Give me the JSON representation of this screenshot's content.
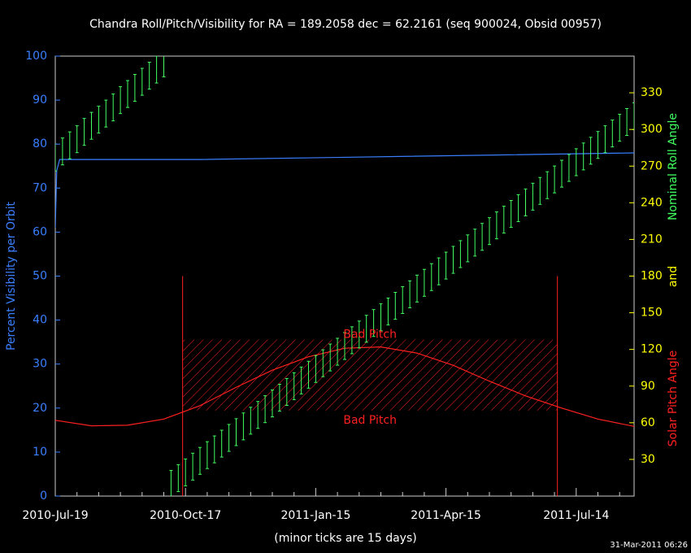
{
  "chart_data": {
    "type": "line",
    "title": "Chandra Roll/Pitch/Visibility for RA = 189.2058 dec = 62.2161 (seq 900024, Obsid 00957)",
    "ylabel": "Percent Visibility per Orbit",
    "y2label_parts": [
      {
        "text": "Solar Pitch Angle",
        "color": "#ff2020"
      },
      {
        "text": "and",
        "color": "#ffff00"
      },
      {
        "text": "Nominal Roll Angle",
        "color": "#40ff60"
      }
    ],
    "xlabel": "(minor ticks are 15 days)",
    "timestamp": "31-Mar-2011 06:26",
    "xlim": [
      0,
      400
    ],
    "xticks": [
      {
        "value": 0,
        "label": "2010-Jul-19"
      },
      {
        "value": 90,
        "label": "2010-Oct-17"
      },
      {
        "value": 180,
        "label": "2011-Jan-15"
      },
      {
        "value": 270,
        "label": "2011-Apr-15"
      },
      {
        "value": 360,
        "label": "2011-Jul-14"
      }
    ],
    "xminorticks": [
      15,
      30,
      45,
      60,
      75,
      105,
      120,
      135,
      150,
      165,
      195,
      210,
      225,
      240,
      255,
      285,
      300,
      315,
      330,
      345,
      375,
      390
    ],
    "ylim": [
      0,
      100
    ],
    "yticks": [
      0,
      10,
      20,
      30,
      40,
      50,
      60,
      70,
      80,
      90,
      100
    ],
    "ycolor": "#3a7fff",
    "y2lim": [
      0,
      360
    ],
    "y2ticks": [
      30,
      60,
      90,
      120,
      150,
      180,
      210,
      240,
      270,
      300,
      330
    ],
    "y2color": "#ffff00",
    "bad_pitch": {
      "labels": [
        "Bad Pitch",
        "Bad Pitch"
      ],
      "x": [
        88,
        347
      ],
      "range": [
        70,
        128
      ],
      "line_top": 180,
      "color": "#ff2020"
    },
    "series": [
      {
        "name": "Visibility",
        "color": "#3a7fff",
        "style": "line",
        "x": [
          0,
          1,
          3,
          100,
          200,
          300,
          400
        ],
        "values": [
          61,
          74,
          76.5,
          76.5,
          77,
          77.5,
          78
        ]
      },
      {
        "name": "Pitch",
        "color": "#ff2020",
        "style": "line",
        "axis": "y2",
        "x": [
          0,
          25,
          50,
          75,
          100,
          125,
          150,
          175,
          200,
          225,
          250,
          275,
          300,
          325,
          350,
          375,
          400
        ],
        "values": [
          62,
          57.5,
          58,
          63,
          74,
          89,
          103,
          114,
          121,
          122,
          117,
          107,
          94,
          82,
          72,
          63,
          57
        ]
      },
      {
        "name": "Roll",
        "color": "#40ff60",
        "style": "errorbar",
        "axis": "y2",
        "error": 11,
        "x": [
          0,
          5,
          10,
          15,
          20,
          25,
          30,
          35,
          40,
          45,
          50,
          55,
          60,
          65,
          70,
          75,
          80,
          85,
          90,
          95,
          100,
          105,
          110,
          115,
          120,
          125,
          130,
          135,
          140,
          145,
          150,
          155,
          160,
          165,
          170,
          175,
          180,
          185,
          190,
          195,
          200,
          205,
          210,
          215,
          220,
          225,
          230,
          235,
          240,
          245,
          250,
          255,
          260,
          265,
          270,
          275,
          280,
          285,
          290,
          295,
          300,
          305,
          310,
          315,
          320,
          325,
          330,
          335,
          340,
          345,
          350,
          355,
          360,
          365,
          370,
          375,
          380,
          385,
          390,
          395,
          400
        ],
        "values": [
          277,
          282,
          287,
          292,
          298,
          303,
          308,
          313,
          318,
          324,
          329,
          334,
          339,
          344,
          349,
          354,
          10,
          14.7,
          19.4,
          24.1,
          28.8,
          33.5,
          38.2,
          42.9,
          47.6,
          52.3,
          57,
          61.7,
          66.4,
          71.1,
          75.8,
          80.5,
          85.2,
          89.9,
          94.6,
          99.3,
          104,
          108.7,
          113.4,
          118.1,
          122.8,
          127.5,
          132.2,
          136.9,
          141.6,
          146.3,
          151,
          155.7,
          160.4,
          165.1,
          169.8,
          174.5,
          179.2,
          183.9,
          188.6,
          193.3,
          198,
          202.7,
          207.4,
          212.1,
          216.8,
          221.5,
          226.2,
          230.9,
          235.6,
          240.3,
          245,
          249.7,
          254.4,
          259.1,
          263.8,
          268.5,
          273.2,
          277.9,
          282.6,
          287.3,
          292,
          296.7,
          301.4,
          306.1,
          310.8
        ]
      }
    ]
  }
}
